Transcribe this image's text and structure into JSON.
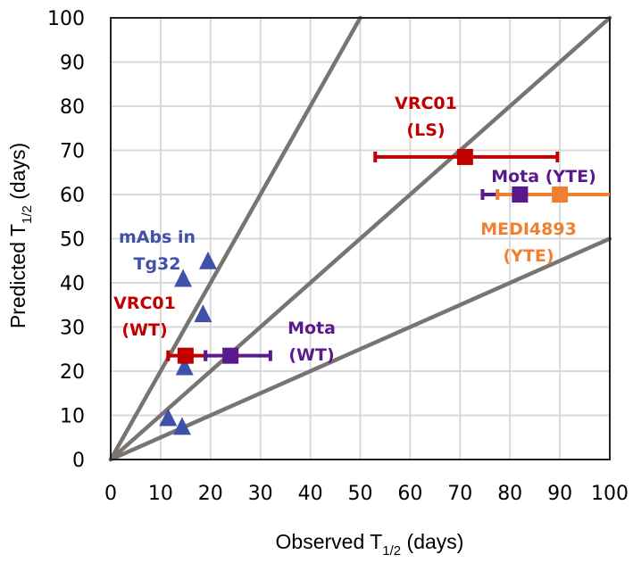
{
  "chart_data": {
    "type": "scatter",
    "title": "",
    "xlabel": {
      "main": "Observed T",
      "sub": "1/2",
      "suffix": " (days)"
    },
    "ylabel": {
      "main": "Predicted T",
      "sub": "1/2",
      "suffix": " (days)"
    },
    "xlim": [
      0,
      100
    ],
    "ylim": [
      0,
      100
    ],
    "xticks": [
      0,
      10,
      20,
      30,
      40,
      50,
      60,
      70,
      80,
      90,
      100
    ],
    "yticks": [
      0,
      10,
      20,
      30,
      40,
      50,
      60,
      70,
      80,
      90,
      100
    ],
    "xtick_labels": [
      "0",
      "10",
      "20",
      "30",
      "40",
      "50",
      "60",
      "70",
      "80",
      "90",
      "100"
    ],
    "ytick_labels": [
      "0",
      "10",
      "20",
      "30",
      "40",
      "50",
      "60",
      "70",
      "80",
      "90",
      "100"
    ],
    "grid": true,
    "reference_lines": [
      {
        "name": "2x-fold",
        "slope": 2,
        "color": "#7a7470"
      },
      {
        "name": "unity",
        "slope": 1,
        "color": "#7a7470"
      },
      {
        "name": "0.5x-fold",
        "slope": 0.5,
        "color": "#7a7470"
      }
    ],
    "series": [
      {
        "name": "mAbs in Tg32",
        "marker": "triangle",
        "color": "#3f51a8",
        "points": [
          {
            "x": 19.5,
            "y": 45
          },
          {
            "x": 14.5,
            "y": 41
          },
          {
            "x": 18.5,
            "y": 33
          },
          {
            "x": 14.8,
            "y": 21
          },
          {
            "x": 11.5,
            "y": 9.5
          },
          {
            "x": 14.3,
            "y": 7.5
          }
        ]
      },
      {
        "name": "VRC01 (WT)",
        "marker": "square",
        "color": "#c00000",
        "points": [
          {
            "x": 15,
            "y": 23.5,
            "xerr_low": 11.5,
            "xerr_high": 19
          }
        ]
      },
      {
        "name": "Mota (WT)",
        "marker": "square",
        "color": "#5a1a8c",
        "points": [
          {
            "x": 24,
            "y": 23.5,
            "xerr_low": 19,
            "xerr_high": 32
          }
        ]
      },
      {
        "name": "VRC01 (LS)",
        "marker": "square",
        "color": "#c00000",
        "points": [
          {
            "x": 71,
            "y": 68.5,
            "xerr_low": 53,
            "xerr_high": 89.5
          }
        ]
      },
      {
        "name": "Mota (YTE)",
        "marker": "square",
        "color": "#5a1a8c",
        "points": [
          {
            "x": 82,
            "y": 60,
            "xerr_low": 74.5,
            "xerr_high": 89
          }
        ]
      },
      {
        "name": "MEDI4893 (YTE)",
        "marker": "square",
        "color": "#f08030",
        "points": [
          {
            "x": 90,
            "y": 60,
            "xerr_low": 77.5,
            "xerr_high": 100
          }
        ]
      }
    ],
    "annotations": [
      {
        "id": "tg32",
        "lines": [
          "mAbs in",
          "Tg32"
        ],
        "color": "#3f51a8"
      },
      {
        "id": "vrc01wt",
        "lines": [
          "VRC01",
          "(WT)"
        ],
        "color": "#c00000"
      },
      {
        "id": "motawt",
        "lines": [
          "Mota",
          "(WT)"
        ],
        "color": "#5a1a8c"
      },
      {
        "id": "vrc01ls",
        "lines": [
          "VRC01",
          "(LS)"
        ],
        "color": "#c00000"
      },
      {
        "id": "motayte",
        "lines": [
          "Mota (YTE)"
        ],
        "color": "#5a1a8c"
      },
      {
        "id": "medi",
        "lines": [
          "MEDI4893",
          "(YTE)"
        ],
        "color": "#f08030"
      }
    ],
    "legend": "none"
  }
}
